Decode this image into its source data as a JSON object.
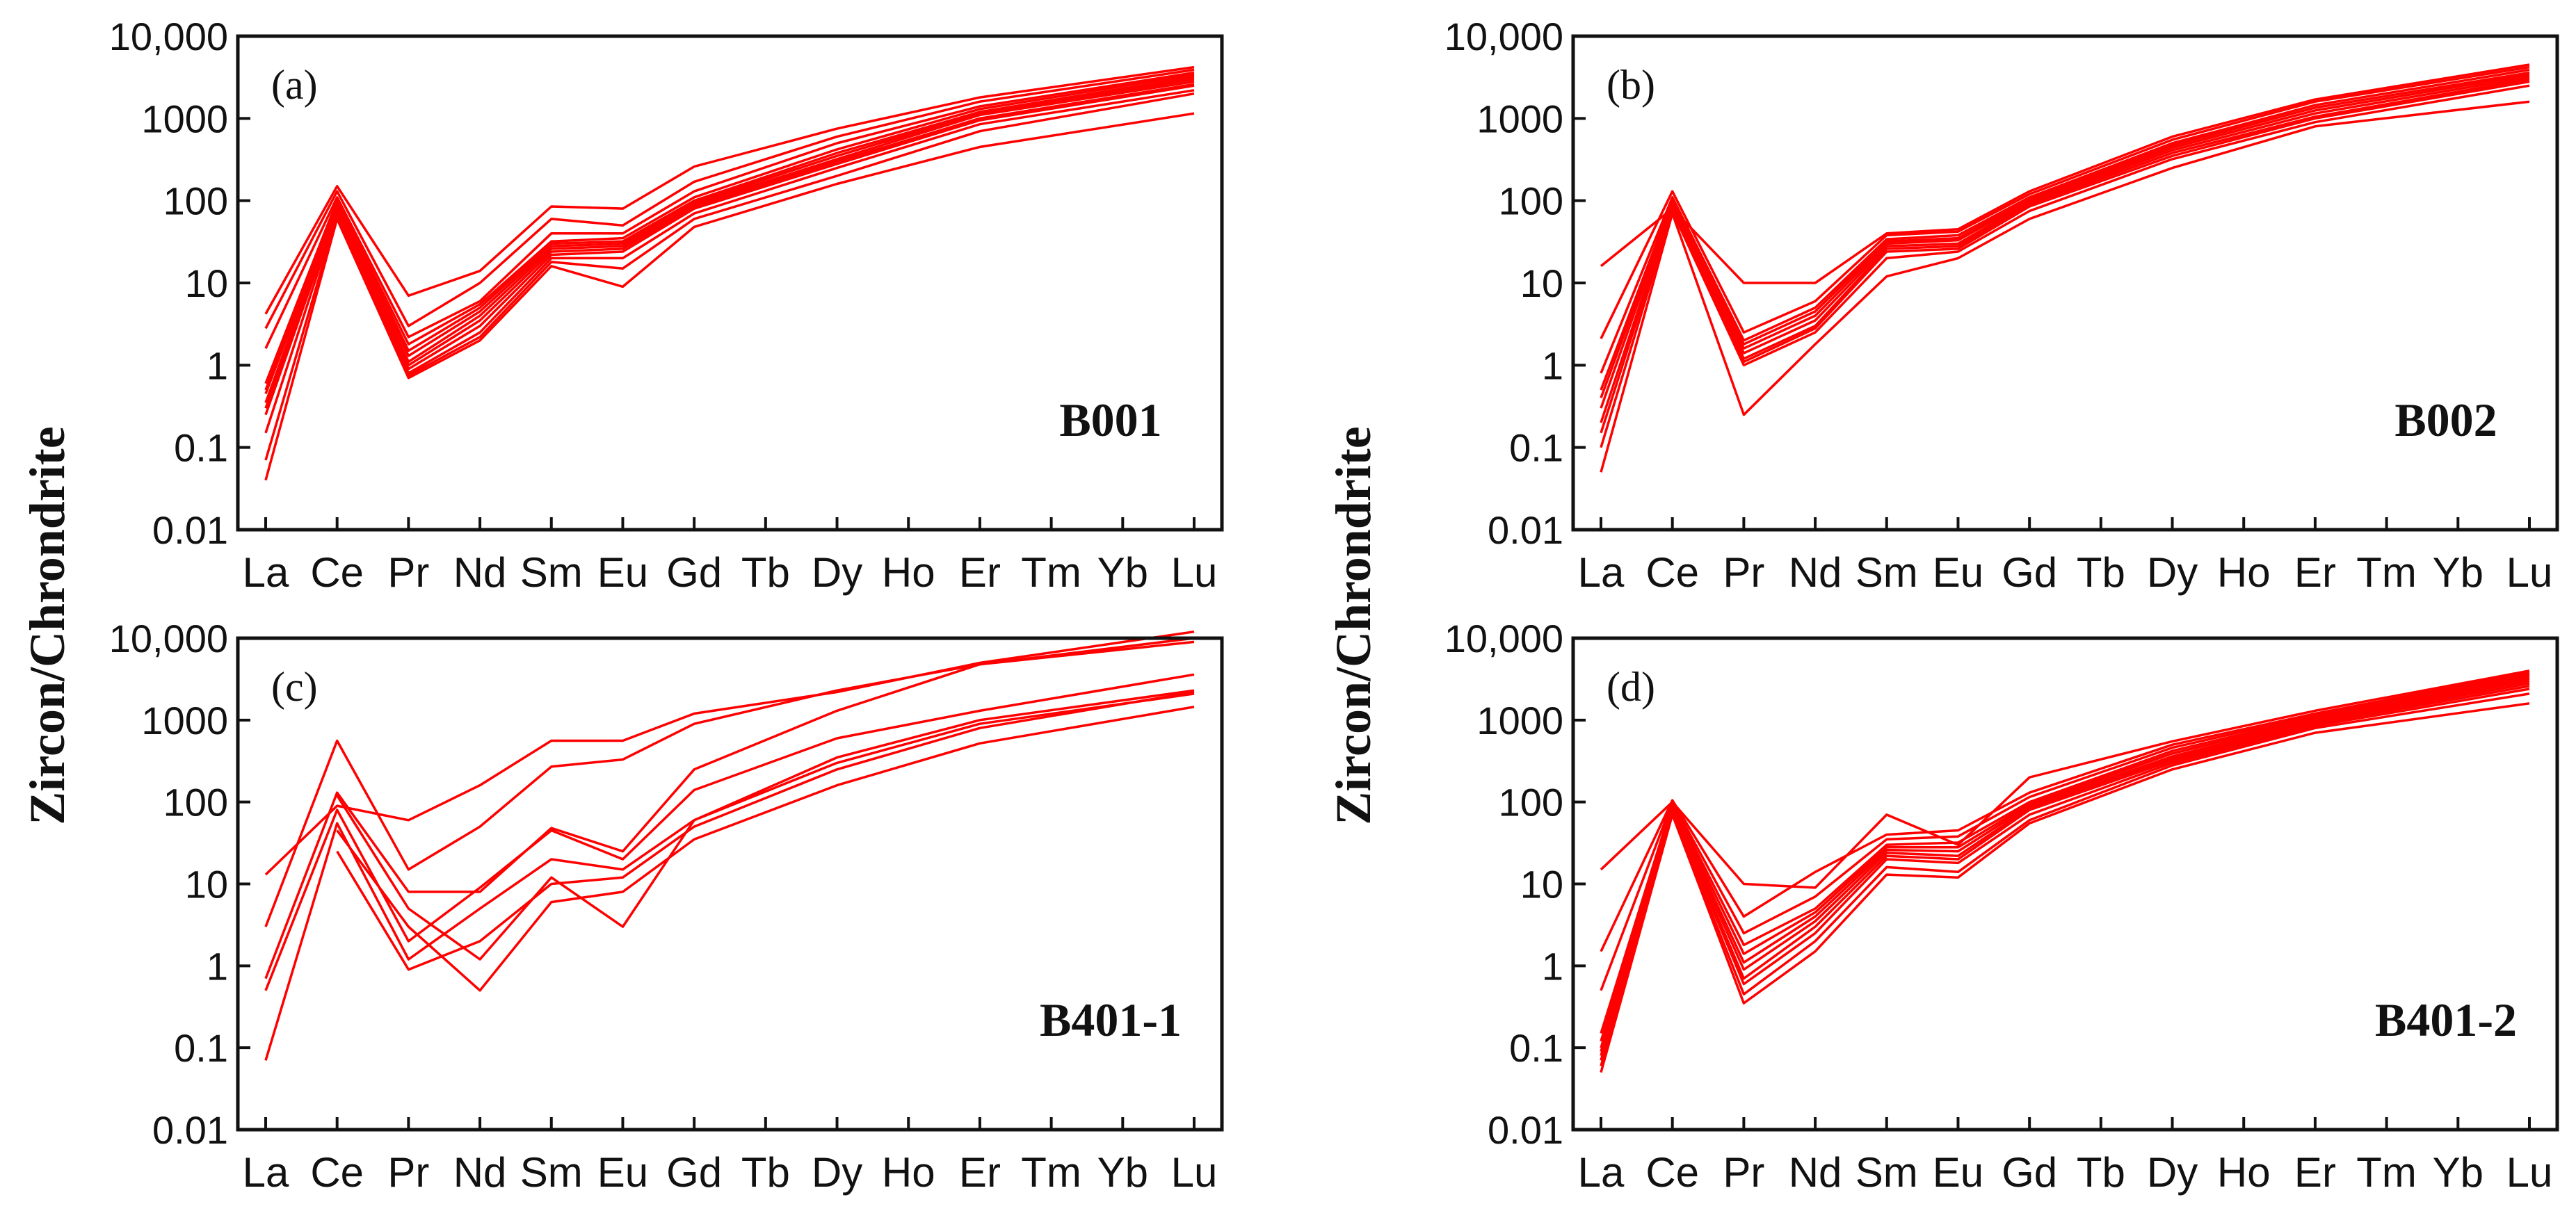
{
  "figure": {
    "y_title": "Zircon/Chrondrite",
    "line_color": "#ff0000"
  },
  "chart_data": [
    {
      "type": "line",
      "panel_tag": "(a)",
      "sample_label": "B001",
      "categories": [
        "La",
        "Ce",
        "Pr",
        "Nd",
        "Sm",
        "Eu",
        "Gd",
        "Tb",
        "Dy",
        "Ho",
        "Er",
        "Tm",
        "Yb",
        "Lu"
      ],
      "yscale": "log",
      "ylim": [
        0.01,
        10000
      ],
      "yticks": [
        0.01,
        0.1,
        1,
        10,
        100,
        1000,
        10000
      ],
      "yticklabels": [
        "0.01",
        "0.1",
        "1",
        "10",
        "100",
        "1000",
        "10,000"
      ],
      "series": [
        {
          "values": [
            4.2,
            150,
            7,
            14,
            85,
            80,
            260,
            null,
            750,
            null,
            1800,
            null,
            null,
            4200
          ]
        },
        {
          "values": [
            2.8,
            130,
            3,
            10,
            60,
            50,
            170,
            null,
            600,
            null,
            1600,
            null,
            null,
            3900
          ]
        },
        {
          "values": [
            1.6,
            110,
            2.2,
            6,
            40,
            40,
            130,
            null,
            500,
            null,
            1400,
            null,
            null,
            3600
          ]
        },
        {
          "values": [
            0.6,
            100,
            1.8,
            5.5,
            32,
            35,
            110,
            null,
            420,
            null,
            1300,
            null,
            null,
            3400
          ]
        },
        {
          "values": [
            0.5,
            95,
            1.5,
            5,
            30,
            32,
            100,
            null,
            380,
            null,
            1200,
            null,
            null,
            3200
          ]
        },
        {
          "values": [
            0.45,
            90,
            1.3,
            4.5,
            28,
            30,
            95,
            null,
            350,
            null,
            1150,
            null,
            null,
            3000
          ]
        },
        {
          "values": [
            0.35,
            85,
            1.1,
            4,
            26,
            28,
            90,
            null,
            320,
            null,
            1100,
            null,
            null,
            2800
          ]
        },
        {
          "values": [
            0.3,
            80,
            1.0,
            3.5,
            24,
            26,
            85,
            null,
            300,
            null,
            1000,
            null,
            null,
            2600
          ]
        },
        {
          "values": [
            0.25,
            75,
            0.9,
            3,
            22,
            24,
            80,
            null,
            280,
            null,
            950,
            null,
            null,
            2500
          ]
        },
        {
          "values": [
            0.15,
            70,
            0.8,
            2.5,
            20,
            20,
            70,
            null,
            250,
            null,
            850,
            null,
            null,
            2200
          ]
        },
        {
          "values": [
            0.07,
            65,
            0.75,
            2.2,
            18,
            15,
            60,
            null,
            200,
            null,
            700,
            null,
            null,
            2000
          ]
        },
        {
          "values": [
            0.04,
            60,
            0.7,
            2.0,
            16,
            9,
            48,
            null,
            160,
            null,
            450,
            null,
            null,
            1150
          ]
        }
      ]
    },
    {
      "type": "line",
      "panel_tag": "(b)",
      "sample_label": "B002",
      "categories": [
        "La",
        "Ce",
        "Pr",
        "Nd",
        "Sm",
        "Eu",
        "Gd",
        "Tb",
        "Dy",
        "Ho",
        "Er",
        "Tm",
        "Yb",
        "Lu"
      ],
      "yscale": "log",
      "ylim": [
        0.01,
        10000
      ],
      "yticks": [
        0.01,
        0.1,
        1,
        10,
        100,
        1000,
        10000
      ],
      "yticklabels": [
        "0.01",
        "0.1",
        "1",
        "10",
        "100",
        "1000",
        "10,000"
      ],
      "series": [
        {
          "values": [
            16,
            80,
            10,
            10,
            40,
            45,
            130,
            null,
            600,
            null,
            1700,
            null,
            null,
            4500
          ]
        },
        {
          "values": [
            2.1,
            130,
            2.5,
            6,
            38,
            42,
            120,
            null,
            550,
            null,
            1600,
            null,
            null,
            4200
          ]
        },
        {
          "values": [
            0.8,
            110,
            2.0,
            5,
            34,
            38,
            110,
            null,
            500,
            null,
            1450,
            null,
            null,
            3900
          ]
        },
        {
          "values": [
            0.5,
            100,
            1.8,
            4.5,
            32,
            35,
            105,
            null,
            470,
            null,
            1350,
            null,
            null,
            3600
          ]
        },
        {
          "values": [
            0.4,
            95,
            1.6,
            4,
            30,
            33,
            100,
            null,
            440,
            null,
            1250,
            null,
            null,
            3400
          ]
        },
        {
          "values": [
            0.3,
            90,
            1.4,
            3.5,
            28,
            30,
            95,
            null,
            410,
            null,
            1150,
            null,
            null,
            3200
          ]
        },
        {
          "values": [
            0.2,
            85,
            1.2,
            3,
            26,
            28,
            90,
            null,
            380,
            null,
            1050,
            null,
            null,
            3000
          ]
        },
        {
          "values": [
            0.15,
            80,
            1.1,
            2.8,
            24,
            26,
            85,
            null,
            350,
            null,
            1000,
            null,
            null,
            2800
          ]
        },
        {
          "values": [
            0.1,
            75,
            1.0,
            2.5,
            20,
            24,
            75,
            null,
            320,
            null,
            900,
            null,
            null,
            2500
          ]
        },
        {
          "values": [
            0.05,
            70,
            0.25,
            1.8,
            12,
            20,
            60,
            null,
            250,
            null,
            800,
            null,
            null,
            1600
          ]
        }
      ]
    },
    {
      "type": "line",
      "panel_tag": "(c)",
      "sample_label": "B401-1",
      "categories": [
        "La",
        "Ce",
        "Pr",
        "Nd",
        "Sm",
        "Eu",
        "Gd",
        "Tb",
        "Dy",
        "Ho",
        "Er",
        "Tm",
        "Yb",
        "Lu"
      ],
      "yscale": "log",
      "ylim": [
        0.01,
        10000
      ],
      "yticks": [
        0.01,
        0.1,
        1,
        10,
        100,
        1000,
        10000
      ],
      "yticklabels": [
        "0.01",
        "0.1",
        "1",
        "10",
        "100",
        "1000",
        "10,000"
      ],
      "series": [
        {
          "values": [
            13,
            90,
            60,
            160,
            560,
            560,
            1200,
            null,
            2200,
            null,
            5000,
            null,
            null,
            12000
          ]
        },
        {
          "values": [
            3,
            560,
            15,
            50,
            270,
            330,
            900,
            null,
            2300,
            null,
            4800,
            null,
            null,
            9000
          ]
        },
        {
          "values": [
            0.7,
            130,
            8,
            8,
            48,
            25,
            250,
            null,
            1300,
            null,
            4800,
            null,
            null,
            10000
          ]
        },
        {
          "values": [
            0.5,
            80,
            2,
            9,
            45,
            20,
            140,
            null,
            600,
            null,
            1300,
            null,
            null,
            3600
          ]
        },
        {
          "values": [
            0.07,
            55,
            1.2,
            5,
            20,
            15,
            60,
            null,
            350,
            null,
            1000,
            null,
            null,
            2300
          ]
        },
        {
          "values": null
        },
        {
          "values": null
        }
      ],
      "extra_series": [
        {
          "values": [
            null,
            25,
            0.9,
            2,
            10,
            12,
            50,
            null,
            250,
            null,
            800,
            null,
            null,
            2200
          ]
        },
        {
          "values": [
            null,
            45,
            3,
            0.5,
            6,
            8,
            35,
            null,
            160,
            null,
            520,
            null,
            null,
            1450
          ]
        },
        {
          "values": [
            null,
            120,
            5,
            1.2,
            12,
            3,
            60,
            null,
            300,
            null,
            900,
            null,
            null,
            2100
          ]
        }
      ]
    },
    {
      "type": "line",
      "panel_tag": "(d)",
      "sample_label": "B401-2",
      "categories": [
        "La",
        "Ce",
        "Pr",
        "Nd",
        "Sm",
        "Eu",
        "Gd",
        "Tb",
        "Dy",
        "Ho",
        "Er",
        "Tm",
        "Yb",
        "Lu"
      ],
      "yscale": "log",
      "ylim": [
        0.01,
        10000
      ],
      "yticks": [
        0.01,
        0.1,
        1,
        10,
        100,
        1000,
        10000
      ],
      "yticklabels": [
        "0.01",
        "0.1",
        "1",
        "10",
        "100",
        "1000",
        "10,000"
      ],
      "series": [
        {
          "values": [
            15,
            100,
            10,
            9,
            70,
            30,
            200,
            null,
            550,
            null,
            1300,
            null,
            null,
            4000
          ]
        },
        {
          "values": [
            1.5,
            105,
            4,
            14,
            40,
            45,
            130,
            null,
            500,
            null,
            1200,
            null,
            null,
            3800
          ]
        },
        {
          "values": [
            0.5,
            100,
            2.5,
            7,
            35,
            38,
            115,
            null,
            460,
            null,
            1150,
            null,
            null,
            3600
          ]
        },
        {
          "values": [
            0.15,
            95,
            1.8,
            5,
            30,
            32,
            100,
            null,
            420,
            null,
            1100,
            null,
            null,
            3400
          ]
        },
        {
          "values": [
            0.12,
            90,
            1.4,
            4.5,
            28,
            28,
            95,
            null,
            390,
            null,
            1050,
            null,
            null,
            3200
          ]
        },
        {
          "values": [
            0.1,
            85,
            1.1,
            4,
            26,
            25,
            90,
            null,
            360,
            null,
            1000,
            null,
            null,
            3000
          ]
        },
        {
          "values": [
            0.09,
            80,
            0.9,
            3.5,
            24,
            22,
            85,
            null,
            340,
            null,
            950,
            null,
            null,
            2800
          ]
        },
        {
          "values": [
            0.08,
            78,
            0.7,
            3,
            22,
            20,
            80,
            null,
            320,
            null,
            900,
            null,
            null,
            2600
          ]
        },
        {
          "values": [
            0.07,
            75,
            0.6,
            2.5,
            20,
            18,
            70,
            null,
            300,
            null,
            850,
            null,
            null,
            2400
          ]
        },
        {
          "values": [
            0.06,
            72,
            0.45,
            2,
            16,
            14,
            60,
            null,
            280,
            null,
            800,
            null,
            null,
            2100
          ]
        },
        {
          "values": [
            0.05,
            70,
            0.35,
            1.5,
            13,
            12,
            55,
            null,
            250,
            null,
            700,
            null,
            null,
            1600
          ]
        }
      ]
    }
  ]
}
